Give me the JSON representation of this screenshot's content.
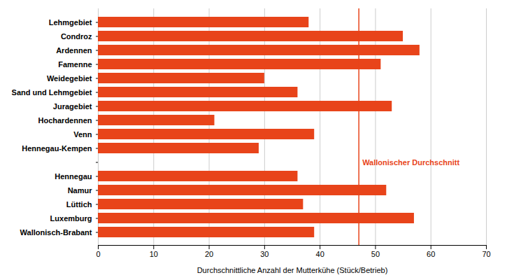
{
  "chart_data": {
    "type": "bar",
    "orientation": "horizontal",
    "categories": [
      "Wallonisch-Brabant",
      "Luxemburg",
      "Lüttich",
      "Namur",
      "Hennegau",
      null,
      "Hennegau-Kempen",
      "Venn",
      "Hochardennen",
      "Juragebiet",
      "Sand und Lehmgebiet",
      "Weidegebiet",
      "Famenne",
      "Ardennen",
      "Condroz",
      "Lehmgebiet"
    ],
    "values": [
      39,
      57,
      37,
      52,
      36,
      null,
      29,
      39,
      21,
      53,
      36,
      30,
      51,
      58,
      55,
      38
    ],
    "color": "#E8441A",
    "xlabel": "Durchschnittliche Anzahl der Mutterkühe (Stück/Betrieb)",
    "xlim": [
      0,
      70
    ],
    "xticks": [
      0,
      10,
      20,
      30,
      40,
      50,
      60,
      70
    ],
    "grid": true,
    "reference_line": {
      "value": 47,
      "label": "Wallonischer Durchschnitt",
      "color": "#E8441A"
    }
  }
}
